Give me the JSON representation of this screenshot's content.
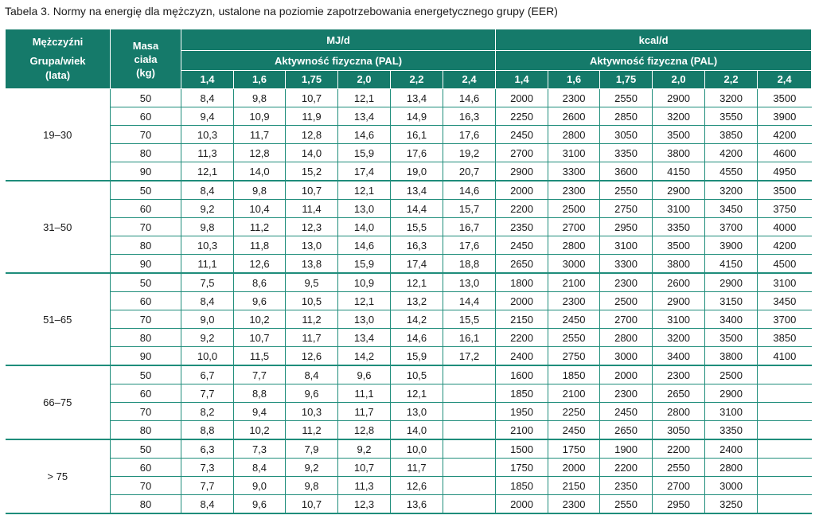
{
  "caption": "Tabela 3. Normy na energię dla mężczyzn, ustalone na poziomie zapotrzebowania energetycznego grupy (EER)",
  "header": {
    "gender": "Mężczyźni",
    "group_age": "Grupa/wiek",
    "years": "(lata)",
    "mass_line1": "Masa",
    "mass_line2": "ciała",
    "mass_unit": "(kg)",
    "mj_unit": "MJ/d",
    "kcal_unit": "kcal/d",
    "pal_label": "Aktywność fizyczna (PAL)",
    "pal_levels": [
      "1,4",
      "1,6",
      "1,75",
      "2,0",
      "2,2",
      "2,4"
    ]
  },
  "groups": [
    {
      "age": "19–30",
      "rows": [
        {
          "mass": "50",
          "mj": [
            "8,4",
            "9,8",
            "10,7",
            "12,1",
            "13,4",
            "14,6"
          ],
          "kcal": [
            "2000",
            "2300",
            "2550",
            "2900",
            "3200",
            "3500"
          ]
        },
        {
          "mass": "60",
          "mj": [
            "9,4",
            "10,9",
            "11,9",
            "13,4",
            "14,9",
            "16,3"
          ],
          "kcal": [
            "2250",
            "2600",
            "2850",
            "3200",
            "3550",
            "3900"
          ]
        },
        {
          "mass": "70",
          "mj": [
            "10,3",
            "11,7",
            "12,8",
            "14,6",
            "16,1",
            "17,6"
          ],
          "kcal": [
            "2450",
            "2800",
            "3050",
            "3500",
            "3850",
            "4200"
          ]
        },
        {
          "mass": "80",
          "mj": [
            "11,3",
            "12,8",
            "14,0",
            "15,9",
            "17,6",
            "19,2"
          ],
          "kcal": [
            "2700",
            "3100",
            "3350",
            "3800",
            "4200",
            "4600"
          ]
        },
        {
          "mass": "90",
          "mj": [
            "12,1",
            "14,0",
            "15,2",
            "17,4",
            "19,0",
            "20,7"
          ],
          "kcal": [
            "2900",
            "3300",
            "3600",
            "4150",
            "4550",
            "4950"
          ]
        }
      ]
    },
    {
      "age": "31–50",
      "rows": [
        {
          "mass": "50",
          "mj": [
            "8,4",
            "9,8",
            "10,7",
            "12,1",
            "13,4",
            "14,6"
          ],
          "kcal": [
            "2000",
            "2300",
            "2550",
            "2900",
            "3200",
            "3500"
          ]
        },
        {
          "mass": "60",
          "mj": [
            "9,2",
            "10,4",
            "11,4",
            "13,0",
            "14,4",
            "15,7"
          ],
          "kcal": [
            "2200",
            "2500",
            "2750",
            "3100",
            "3450",
            "3750"
          ]
        },
        {
          "mass": "70",
          "mj": [
            "9,8",
            "11,2",
            "12,3",
            "14,0",
            "15,5",
            "16,7"
          ],
          "kcal": [
            "2350",
            "2700",
            "2950",
            "3350",
            "3700",
            "4000"
          ]
        },
        {
          "mass": "80",
          "mj": [
            "10,3",
            "11,8",
            "13,0",
            "14,6",
            "16,3",
            "17,6"
          ],
          "kcal": [
            "2450",
            "2800",
            "3100",
            "3500",
            "3900",
            "4200"
          ]
        },
        {
          "mass": "90",
          "mj": [
            "11,1",
            "12,6",
            "13,8",
            "15,9",
            "17,4",
            "18,8"
          ],
          "kcal": [
            "2650",
            "3000",
            "3300",
            "3800",
            "4150",
            "4500"
          ]
        }
      ]
    },
    {
      "age": "51–65",
      "rows": [
        {
          "mass": "50",
          "mj": [
            "7,5",
            "8,6",
            "9,5",
            "10,9",
            "12,1",
            "13,0"
          ],
          "kcal": [
            "1800",
            "2100",
            "2300",
            "2600",
            "2900",
            "3100"
          ]
        },
        {
          "mass": "60",
          "mj": [
            "8,4",
            "9,6",
            "10,5",
            "12,1",
            "13,2",
            "14,4"
          ],
          "kcal": [
            "2000",
            "2300",
            "2500",
            "2900",
            "3150",
            "3450"
          ]
        },
        {
          "mass": "70",
          "mj": [
            "9,0",
            "10,2",
            "11,2",
            "13,0",
            "14,2",
            "15,5"
          ],
          "kcal": [
            "2150",
            "2450",
            "2700",
            "3100",
            "3400",
            "3700"
          ]
        },
        {
          "mass": "80",
          "mj": [
            "9,2",
            "10,7",
            "11,7",
            "13,4",
            "14,6",
            "16,1"
          ],
          "kcal": [
            "2200",
            "2550",
            "2800",
            "3200",
            "3500",
            "3850"
          ]
        },
        {
          "mass": "90",
          "mj": [
            "10,0",
            "11,5",
            "12,6",
            "14,2",
            "15,9",
            "17,2"
          ],
          "kcal": [
            "2400",
            "2750",
            "3000",
            "3400",
            "3800",
            "4100"
          ]
        }
      ]
    },
    {
      "age": "66–75",
      "rows": [
        {
          "mass": "50",
          "mj": [
            "6,7",
            "7,7",
            "8,4",
            "9,6",
            "10,5",
            ""
          ],
          "kcal": [
            "1600",
            "1850",
            "2000",
            "2300",
            "2500",
            ""
          ]
        },
        {
          "mass": "60",
          "mj": [
            "7,7",
            "8,8",
            "9,6",
            "11,1",
            "12,1",
            ""
          ],
          "kcal": [
            "1850",
            "2100",
            "2300",
            "2650",
            "2900",
            ""
          ]
        },
        {
          "mass": "70",
          "mj": [
            "8,2",
            "9,4",
            "10,3",
            "11,7",
            "13,0",
            ""
          ],
          "kcal": [
            "1950",
            "2250",
            "2450",
            "2800",
            "3100",
            ""
          ]
        },
        {
          "mass": "80",
          "mj": [
            "8,8",
            "10,2",
            "11,2",
            "12,8",
            "14,0",
            ""
          ],
          "kcal": [
            "2100",
            "2450",
            "2650",
            "3050",
            "3350",
            ""
          ]
        }
      ]
    },
    {
      "age": "> 75",
      "rows": [
        {
          "mass": "50",
          "mj": [
            "6,3",
            "7,3",
            "7,9",
            "9,2",
            "10,0",
            ""
          ],
          "kcal": [
            "1500",
            "1750",
            "1900",
            "2200",
            "2400",
            ""
          ]
        },
        {
          "mass": "60",
          "mj": [
            "7,3",
            "8,4",
            "9,2",
            "10,7",
            "11,7",
            ""
          ],
          "kcal": [
            "1750",
            "2000",
            "2200",
            "2550",
            "2800",
            ""
          ]
        },
        {
          "mass": "70",
          "mj": [
            "7,7",
            "9,0",
            "9,8",
            "11,3",
            "12,6",
            ""
          ],
          "kcal": [
            "1850",
            "2150",
            "2350",
            "2700",
            "3000",
            ""
          ]
        },
        {
          "mass": "80",
          "mj": [
            "8,4",
            "9,6",
            "10,7",
            "12,3",
            "13,6",
            ""
          ],
          "kcal": [
            "2000",
            "2300",
            "2550",
            "2950",
            "3250",
            ""
          ]
        }
      ]
    }
  ]
}
